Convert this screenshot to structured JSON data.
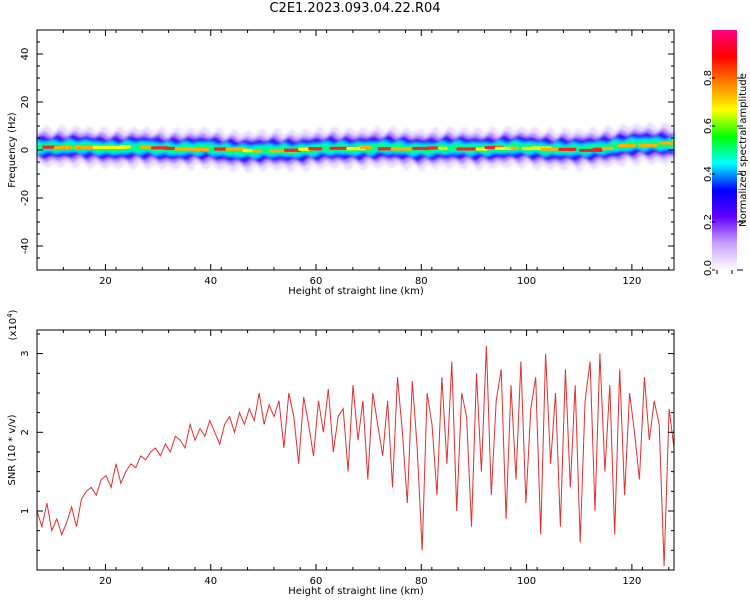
{
  "title": "C2E1.2023.093.04.22.R04",
  "chart_data": [
    {
      "type": "heatmap",
      "title": "C2E1.2023.093.04.22.R04",
      "xlabel": "Height of straight line (km)",
      "ylabel": "Frequency (Hz)",
      "xlim": [
        7,
        128
      ],
      "ylim": [
        -50,
        50
      ],
      "x_ticks": [
        20,
        40,
        60,
        80,
        100,
        120
      ],
      "y_ticks": [
        -40,
        -20,
        0,
        20,
        40
      ],
      "colorbar": {
        "label": "Normalized spectral amplitude",
        "range": [
          0,
          1
        ],
        "ticks": [
          0.0,
          0.2,
          0.4,
          0.6,
          0.8
        ],
        "colors": [
          "#ffffff",
          "#c8a0ff",
          "#6000ff",
          "#0000ff",
          "#00ffff",
          "#00ff00",
          "#ffff00",
          "#ff8000",
          "#ff0000",
          "#ff0080"
        ]
      },
      "ridge": [
        {
          "x": 8,
          "freq": 1.5
        },
        {
          "x": 20,
          "freq": 1.0
        },
        {
          "x": 40,
          "freq": 0.5
        },
        {
          "x": 48,
          "freq": -0.5
        },
        {
          "x": 55,
          "freq": 0.0
        },
        {
          "x": 70,
          "freq": 1.0
        },
        {
          "x": 80,
          "freq": 0.5
        },
        {
          "x": 100,
          "freq": 1.0
        },
        {
          "x": 110,
          "freq": 0.0
        },
        {
          "x": 118,
          "freq": 2.0
        },
        {
          "x": 128,
          "freq": 2.8
        }
      ],
      "ridge_halfwidth_hz": 3
    },
    {
      "type": "line",
      "xlabel": "Height of straight line (km)",
      "ylabel": "SNR (10 * v/v)",
      "y_multiplier": "(x10^4)",
      "xlim": [
        7,
        128
      ],
      "ylim": [
        0.25,
        3.3
      ],
      "x_ticks": [
        20,
        40,
        60,
        80,
        100,
        120
      ],
      "y_ticks": [
        1,
        2,
        3
      ],
      "series": [
        {
          "color": "#e03030",
          "x_start": 7,
          "x_end": 128,
          "values": [
            1.0,
            0.8,
            1.1,
            0.75,
            0.9,
            0.7,
            0.85,
            1.05,
            0.8,
            1.15,
            1.25,
            1.3,
            1.2,
            1.4,
            1.45,
            1.3,
            1.6,
            1.35,
            1.5,
            1.6,
            1.55,
            1.7,
            1.65,
            1.75,
            1.8,
            1.7,
            1.85,
            1.75,
            1.95,
            1.9,
            1.8,
            2.1,
            1.9,
            2.05,
            1.95,
            2.15,
            2.0,
            1.85,
            2.1,
            2.2,
            2.0,
            2.25,
            2.1,
            2.3,
            2.15,
            2.5,
            2.1,
            2.35,
            2.2,
            2.4,
            1.8,
            2.5,
            2.2,
            1.6,
            2.45,
            2.1,
            1.7,
            2.4,
            2.0,
            2.55,
            1.75,
            2.2,
            2.3,
            1.5,
            2.6,
            1.9,
            2.4,
            1.4,
            2.5,
            2.1,
            1.7,
            2.4,
            1.3,
            2.7,
            2.0,
            1.1,
            2.65,
            1.8,
            0.5,
            2.5,
            2.1,
            1.2,
            2.7,
            1.6,
            2.9,
            1.0,
            2.5,
            2.2,
            0.8,
            2.75,
            1.5,
            3.1,
            1.2,
            2.4,
            2.8,
            0.9,
            2.6,
            1.4,
            2.9,
            1.1,
            2.3,
            2.7,
            0.7,
            3.0,
            1.6,
            2.5,
            0.8,
            2.8,
            1.3,
            2.6,
            0.6,
            2.4,
            2.9,
            1.0,
            3.0,
            1.5,
            2.6,
            0.7,
            2.8,
            1.2,
            2.5,
            2.0,
            1.4,
            2.7,
            1.9,
            2.4,
            2.1,
            0.3,
            2.3,
            1.8
          ]
        }
      ]
    }
  ]
}
